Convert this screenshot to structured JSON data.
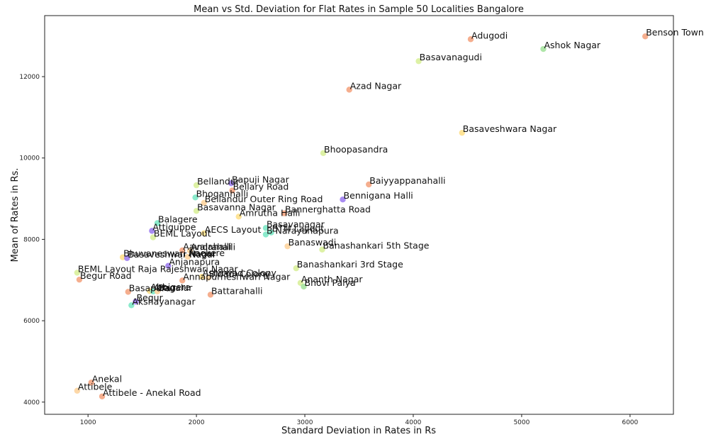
{
  "chart_data": {
    "type": "scatter",
    "title": "Mean vs Std. Deviation for Flat Rates in Sample 50 Localities Bangalore",
    "xlabel": "Standard Deviation in Rates in Rs",
    "ylabel": "Mean of Rates in Rs.",
    "xlim": [
      600,
      6400
    ],
    "ylim": [
      3700,
      13500
    ],
    "xticks": [
      1000,
      2000,
      3000,
      4000,
      5000,
      6000
    ],
    "yticks": [
      4000,
      6000,
      8000,
      10000,
      12000
    ],
    "grid": false,
    "points": [
      {
        "label": "Benson Town",
        "x": 6140,
        "y": 12990,
        "color": "#f4a582"
      },
      {
        "label": "Adugodi",
        "x": 4530,
        "y": 12920,
        "color": "#f4a582"
      },
      {
        "label": "Ashok Nagar",
        "x": 5200,
        "y": 12680,
        "color": "#a6e3a0"
      },
      {
        "label": "Basavanagudi",
        "x": 4050,
        "y": 12380,
        "color": "#d9ef9b"
      },
      {
        "label": "Azad Nagar",
        "x": 3410,
        "y": 11680,
        "color": "#f4a582"
      },
      {
        "label": "Basaveshwara Nagar",
        "x": 4450,
        "y": 10620,
        "color": "#fee08b"
      },
      {
        "label": "Bhoopasandra",
        "x": 3170,
        "y": 10120,
        "color": "#d9ef9b"
      },
      {
        "label": "Baiyyappanahalli",
        "x": 3590,
        "y": 9350,
        "color": "#f4a582"
      },
      {
        "label": "Bennigana Halli",
        "x": 3350,
        "y": 8980,
        "color": "#9e7ff0"
      },
      {
        "label": "Bellandur",
        "x": 2000,
        "y": 9330,
        "color": "#d9ef9b"
      },
      {
        "label": "Bapuji Nagar",
        "x": 2320,
        "y": 9380,
        "color": "#9e7ff0"
      },
      {
        "label": "Bellary Road",
        "x": 2330,
        "y": 9200,
        "color": "#f4a582"
      },
      {
        "label": "Bhoganhalli",
        "x": 1990,
        "y": 9030,
        "color": "#7ee8c6"
      },
      {
        "label": "Bellandur Outer Ring Road",
        "x": 2070,
        "y": 8900,
        "color": "#fdd49e"
      },
      {
        "label": "Basavanna Nagar",
        "x": 2000,
        "y": 8700,
        "color": "#d9ef9b"
      },
      {
        "label": "Amrutha Halli",
        "x": 2390,
        "y": 8560,
        "color": "#fee08b"
      },
      {
        "label": "Bannerghatta Road",
        "x": 2810,
        "y": 8640,
        "color": "#f4a582"
      },
      {
        "label": "Balagere",
        "x": 1640,
        "y": 8400,
        "color": "#7ee8c6"
      },
      {
        "label": "Attiguppe",
        "x": 1590,
        "y": 8210,
        "color": "#9e7ff0"
      },
      {
        "label": "BEML Layout",
        "x": 1600,
        "y": 8050,
        "color": "#d9ef9b"
      },
      {
        "label": "AECS Layout",
        "x": 2070,
        "y": 8150,
        "color": "#fee08b"
      },
      {
        "label": "Basavanagar",
        "x": 2640,
        "y": 8280,
        "color": "#7ee8c6"
      },
      {
        "label": "BTM Layout",
        "x": 2690,
        "y": 8170,
        "color": "#7ee8c6"
      },
      {
        "label": "B Narayanapura",
        "x": 2640,
        "y": 8120,
        "color": "#7ee8c6"
      },
      {
        "label": "Banaswadi",
        "x": 2840,
        "y": 7830,
        "color": "#fdd49e"
      },
      {
        "label": "Banashankari 5th Stage",
        "x": 3160,
        "y": 7750,
        "color": "#d9ef9b"
      },
      {
        "label": "Aavalahalli",
        "x": 1870,
        "y": 7730,
        "color": "#f4a582"
      },
      {
        "label": "Andrahalli",
        "x": 1940,
        "y": 7720,
        "color": "#fdd49e"
      },
      {
        "label": "Bhuvaneswari Nagar",
        "x": 1320,
        "y": 7560,
        "color": "#fee08b"
      },
      {
        "label": "Basaveshwar Nagar",
        "x": 1360,
        "y": 7540,
        "color": "#9e7ff0"
      },
      {
        "label": "Anekere",
        "x": 1920,
        "y": 7570,
        "color": "#fdd49e"
      },
      {
        "label": "Anjanapura",
        "x": 1740,
        "y": 7350,
        "color": "#9e7ff0"
      },
      {
        "label": "Banashankari 3rd Stage",
        "x": 2920,
        "y": 7290,
        "color": "#d9ef9b"
      },
      {
        "label": "BEML Layout Raja Rajeshwari Nagar",
        "x": 900,
        "y": 7180,
        "color": "#d9ef9b"
      },
      {
        "label": "Ashirwad Colony",
        "x": 2050,
        "y": 7080,
        "color": "#fee08b"
      },
      {
        "label": "Bidadi Colony",
        "x": 2110,
        "y": 7060,
        "color": "#fdd49e"
      },
      {
        "label": "Annapurneshwari Nagar",
        "x": 1870,
        "y": 6990,
        "color": "#f4a582"
      },
      {
        "label": "Begur Road",
        "x": 920,
        "y": 7010,
        "color": "#f4a582"
      },
      {
        "label": "Ananth Nagar",
        "x": 2960,
        "y": 6930,
        "color": "#d9ef9b"
      },
      {
        "label": "Bhovi Palya",
        "x": 2990,
        "y": 6840,
        "color": "#a6e3a0"
      },
      {
        "label": "Basapura",
        "x": 1370,
        "y": 6710,
        "color": "#f4a582"
      },
      {
        "label": "Abbigere",
        "x": 1570,
        "y": 6730,
        "color": "#fee08b"
      },
      {
        "label": "Attur",
        "x": 1600,
        "y": 6720,
        "color": "#7ee8c6"
      },
      {
        "label": "Bagalur",
        "x": 1640,
        "y": 6720,
        "color": "#fdd49e"
      },
      {
        "label": "Battarahalli",
        "x": 2130,
        "y": 6640,
        "color": "#f4a582"
      },
      {
        "label": "Begur",
        "x": 1440,
        "y": 6470,
        "color": "#9e7ff0"
      },
      {
        "label": "Akshayanagar",
        "x": 1400,
        "y": 6380,
        "color": "#7ee8c6"
      },
      {
        "label": "Anekal",
        "x": 1030,
        "y": 4480,
        "color": "#f4a582"
      },
      {
        "label": "Attibele",
        "x": 900,
        "y": 4280,
        "color": "#fdd49e"
      },
      {
        "label": "Attibele - Anekal Road",
        "x": 1130,
        "y": 4140,
        "color": "#f4a582"
      }
    ]
  }
}
